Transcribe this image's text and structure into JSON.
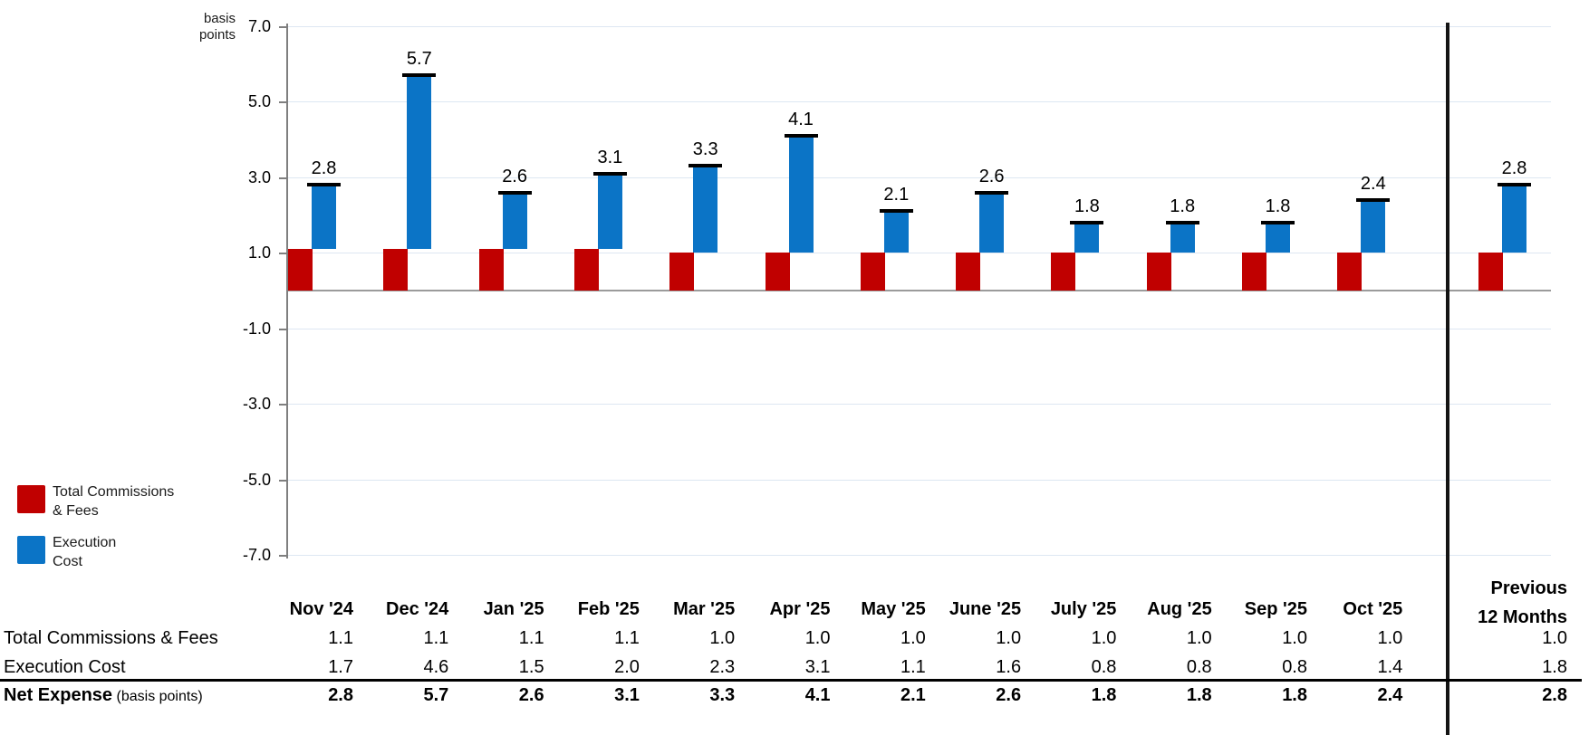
{
  "chart_data": {
    "type": "bar",
    "subtype": "stacked-offset-columns-with-total-caps",
    "unit_label_lines": [
      "basis",
      "points"
    ],
    "categories": [
      "Nov '24",
      "Dec '24",
      "Jan '25",
      "Feb '25",
      "Mar '25",
      "Apr '25",
      "May '25",
      "June '25",
      "July '25",
      "Aug '25",
      "Sep '25",
      "Oct '25"
    ],
    "previous_period": {
      "label_lines": [
        "Previous",
        "12 Months"
      ]
    },
    "series": [
      {
        "name": "Total Commissions & Fees",
        "color": "#c00000",
        "values": [
          1.1,
          1.1,
          1.1,
          1.1,
          1.0,
          1.0,
          1.0,
          1.0,
          1.0,
          1.0,
          1.0,
          1.0
        ],
        "previous": 1.0
      },
      {
        "name": "Execution Cost",
        "color": "#0b74c6",
        "values": [
          1.7,
          4.6,
          1.5,
          2.0,
          2.3,
          3.1,
          1.1,
          1.6,
          0.8,
          0.8,
          0.8,
          1.4
        ],
        "previous": 1.8
      }
    ],
    "net_expense": {
      "label": "Net Expense",
      "sublabel": "(basis points)",
      "values": [
        2.8,
        5.7,
        2.6,
        3.1,
        3.3,
        4.1,
        2.1,
        2.6,
        1.8,
        1.8,
        1.8,
        2.4
      ],
      "previous": 2.8
    },
    "ylim": [
      -7.0,
      7.0
    ],
    "yticks": [
      7.0,
      5.0,
      3.0,
      1.0,
      -1.0,
      -3.0,
      -5.0,
      -7.0
    ],
    "grid": true,
    "total_cap_color": "#000000",
    "zero_line_color": "#9b9b9b",
    "legend_position": "bottom-left"
  },
  "legend": {
    "items": [
      {
        "label_lines": [
          "Total Commissions",
          "& Fees"
        ],
        "color": "#c00000"
      },
      {
        "label_lines": [
          "Execution",
          "Cost"
        ],
        "color": "#0b74c6"
      }
    ]
  }
}
